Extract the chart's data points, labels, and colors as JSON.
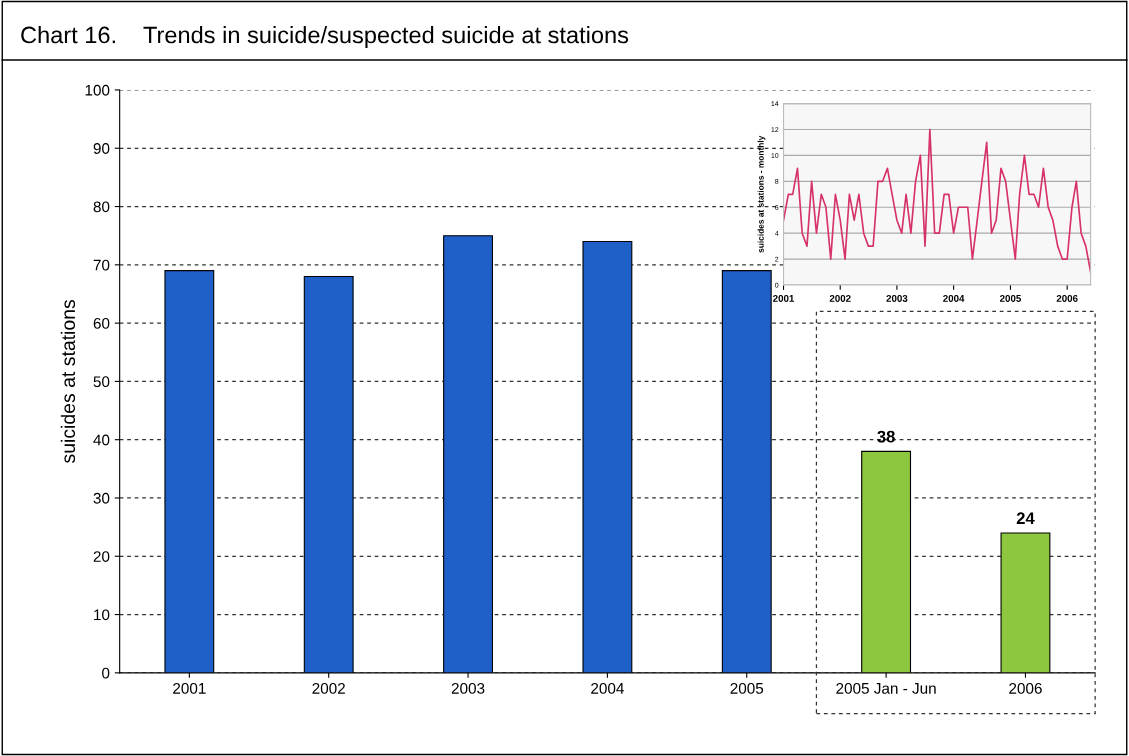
{
  "chart_data": [
    {
      "type": "bar",
      "title": "Chart 16.    Trends in suicide/suspected suicide at stations",
      "ylabel": "suicides at stations",
      "categories": [
        "2001",
        "2002",
        "2003",
        "2004",
        "2005",
        "2005 Jan - Jun",
        "2006"
      ],
      "values": [
        69,
        68,
        75,
        74,
        69,
        38,
        24
      ],
      "colors": [
        "#1f5fc8",
        "#1f5fc8",
        "#1f5fc8",
        "#1f5fc8",
        "#1f5fc8",
        "#8dc63f",
        "#8dc63f"
      ],
      "value_labels": [
        null,
        null,
        null,
        null,
        null,
        "38",
        "24"
      ],
      "ylim": [
        0,
        100
      ],
      "yticks": [
        0,
        10,
        20,
        30,
        40,
        50,
        60,
        70,
        80,
        90,
        100
      ],
      "grid": "y",
      "legend": false
    },
    {
      "type": "line",
      "ylabel": "suicides at stations - monthly",
      "x": [
        "2001-01",
        "2001-02",
        "2001-03",
        "2001-04",
        "2001-05",
        "2001-06",
        "2001-07",
        "2001-08",
        "2001-09",
        "2001-10",
        "2001-11",
        "2001-12",
        "2002-01",
        "2002-02",
        "2002-03",
        "2002-04",
        "2002-05",
        "2002-06",
        "2002-07",
        "2002-08",
        "2002-09",
        "2002-10",
        "2002-11",
        "2002-12",
        "2003-01",
        "2003-02",
        "2003-03",
        "2003-04",
        "2003-05",
        "2003-06",
        "2003-07",
        "2003-08",
        "2003-09",
        "2003-10",
        "2003-11",
        "2003-12",
        "2004-01",
        "2004-02",
        "2004-03",
        "2004-04",
        "2004-05",
        "2004-06",
        "2004-07",
        "2004-08",
        "2004-09",
        "2004-10",
        "2004-11",
        "2004-12",
        "2005-01",
        "2005-02",
        "2005-03",
        "2005-04",
        "2005-05",
        "2005-06",
        "2005-07",
        "2005-08",
        "2005-09",
        "2005-10",
        "2005-11",
        "2005-12",
        "2006-01",
        "2006-02",
        "2006-03",
        "2006-04",
        "2006-05",
        "2006-06"
      ],
      "series": [
        {
          "color": "#d6336c",
          "values": [
            5,
            7,
            7,
            9,
            4,
            3,
            8,
            4,
            7,
            6,
            2,
            7,
            5,
            2,
            7,
            5,
            7,
            4,
            3,
            3,
            8,
            8,
            9,
            7,
            5,
            4,
            7,
            4,
            8,
            10,
            3,
            12,
            4,
            4,
            7,
            7,
            4,
            6,
            6,
            6,
            2,
            5,
            8,
            11,
            4,
            5,
            9,
            8,
            5,
            2,
            7,
            10,
            7,
            7,
            6,
            9,
            6,
            5,
            3,
            2,
            2,
            6,
            8,
            4,
            3,
            1
          ]
        }
      ],
      "xlim": [
        "2001-01",
        "2006-06"
      ],
      "xticks": [
        {
          "value": "2001-01",
          "label": "2001"
        },
        {
          "value": "2002-01",
          "label": "2002"
        },
        {
          "value": "2003-01",
          "label": "2003"
        },
        {
          "value": "2004-01",
          "label": "2004"
        },
        {
          "value": "2005-01",
          "label": "2005"
        },
        {
          "value": "2006-01",
          "label": "2006"
        }
      ],
      "ylim": [
        0,
        14
      ],
      "yticks": [
        0,
        2,
        4,
        6,
        8,
        10,
        12,
        14
      ],
      "grid": "y",
      "marker": "none",
      "line_style": "solid",
      "legend": false
    }
  ]
}
